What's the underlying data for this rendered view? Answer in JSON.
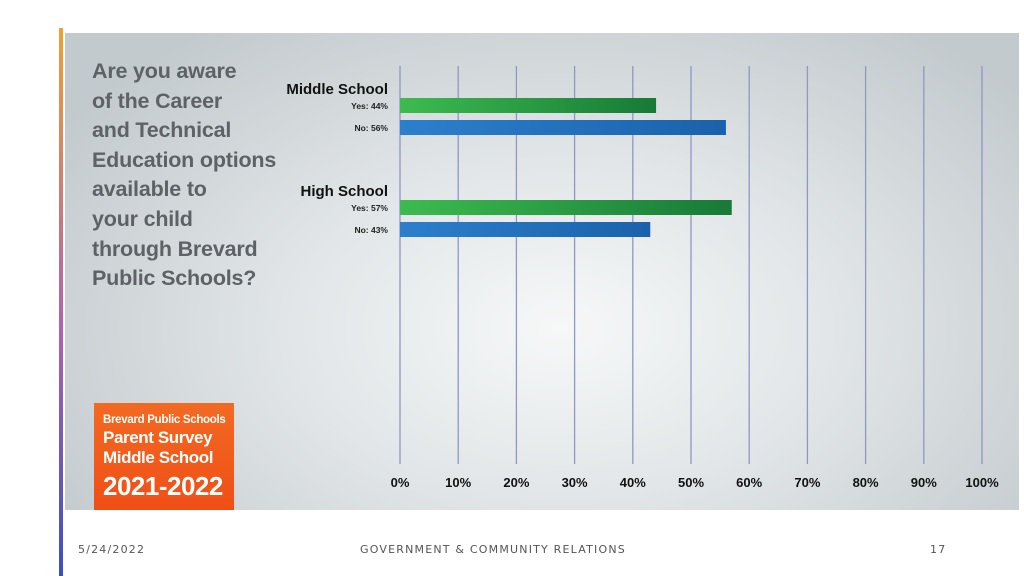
{
  "question": "Are you aware\nof the Career\nand Technical\nEducation options\navailable to\nyour child\nthrough Brevard\nPublic Schools?",
  "badge": {
    "line1": "Brevard Public Schools",
    "line2": "Parent Survey",
    "line3": "Middle School",
    "line4": "2021-2022"
  },
  "footer": {
    "date": "5/24/2022",
    "org": "GOVERNMENT & COMMUNITY RELATIONS",
    "page": "17"
  },
  "colors": {
    "yes_bar": "#27a344",
    "no_bar": "#1f6fbe",
    "badge": "#f05a1e",
    "grid": "#8f97c2"
  },
  "chart_data": {
    "type": "bar",
    "orientation": "horizontal",
    "xlim": [
      0,
      100
    ],
    "x_ticks": [
      "0%",
      "10%",
      "20%",
      "30%",
      "40%",
      "50%",
      "60%",
      "70%",
      "80%",
      "90%",
      "100%"
    ],
    "grid": true,
    "groups": [
      {
        "name": "Middle School",
        "bars": [
          {
            "label": "Yes: 44%",
            "category": "Yes",
            "value": 44
          },
          {
            "label": "No: 56%",
            "category": "No",
            "value": 56
          }
        ]
      },
      {
        "name": "High School",
        "bars": [
          {
            "label": "Yes: 57%",
            "category": "Yes",
            "value": 57
          },
          {
            "label": "No: 43%",
            "category": "No",
            "value": 43
          }
        ]
      }
    ]
  }
}
